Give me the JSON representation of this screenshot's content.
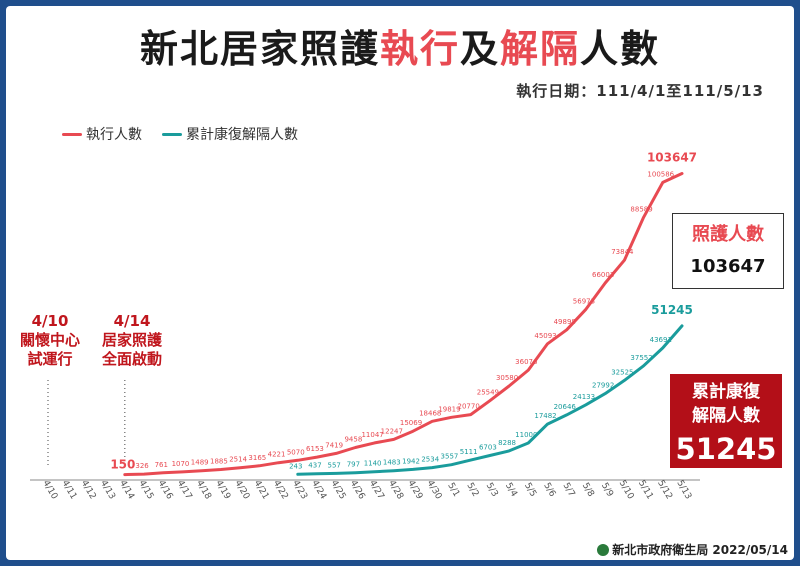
{
  "header": {
    "title_part1": "新北居家照護",
    "title_part2": "執行",
    "title_part3": "及",
    "title_part4": "解隔",
    "title_part5": "人數",
    "period": "執行日期：111/4/1至111/5/13"
  },
  "colors": {
    "executed": "#e84a52",
    "recovered": "#1a9c9c",
    "accent_red": "#b30f18"
  },
  "annotations": {
    "note1": [
      "4/10",
      "關懷中心",
      "試運行"
    ],
    "note2": [
      "4/14",
      "居家照護",
      "全面啟動"
    ]
  },
  "boxes": {
    "care_label": "照護人數",
    "care_value": "103647",
    "recovered_label_1": "累計康復",
    "recovered_label_2": "解隔人數",
    "recovered_value": "51245"
  },
  "footer": {
    "source": "新北市政府衛生局 2022/05/14"
  },
  "chart_data": {
    "type": "line",
    "categories": [
      "4/10",
      "4/11",
      "4/12",
      "4/13",
      "4/14",
      "4/15",
      "4/16",
      "4/17",
      "4/18",
      "4/19",
      "4/20",
      "4/21",
      "4/22",
      "4/23",
      "4/24",
      "4/25",
      "4/26",
      "4/27",
      "4/28",
      "4/29",
      "4/30",
      "5/1",
      "5/2",
      "5/3",
      "5/4",
      "5/5",
      "5/6",
      "5/7",
      "5/8",
      "5/9",
      "5/10",
      "5/11",
      "5/12",
      "5/13"
    ],
    "series": [
      {
        "name": "執行人數",
        "values": [
          null,
          null,
          null,
          null,
          150,
          326,
          761,
          1070,
          1489,
          1885,
          2514,
          3165,
          4221,
          5070,
          6153,
          7419,
          9458,
          11047,
          12247,
          15069,
          18468,
          19819,
          20770,
          25549,
          30580,
          36076,
          45093,
          49898,
          56973,
          66003,
          73844,
          88589,
          100586,
          103647
        ]
      },
      {
        "name": "累計康復解隔人數",
        "values": [
          null,
          null,
          null,
          null,
          null,
          null,
          null,
          null,
          null,
          null,
          null,
          null,
          null,
          243,
          437,
          557,
          797,
          1140,
          1483,
          1942,
          2534,
          3557,
          5111,
          6703,
          8288,
          11000,
          17482,
          20646,
          24133,
          27992,
          32525,
          37552,
          43691,
          51245
        ]
      }
    ],
    "xlabel": "",
    "ylabel": "",
    "ylim": [
      0,
      110000
    ],
    "grid": false,
    "legend": "top-left"
  }
}
